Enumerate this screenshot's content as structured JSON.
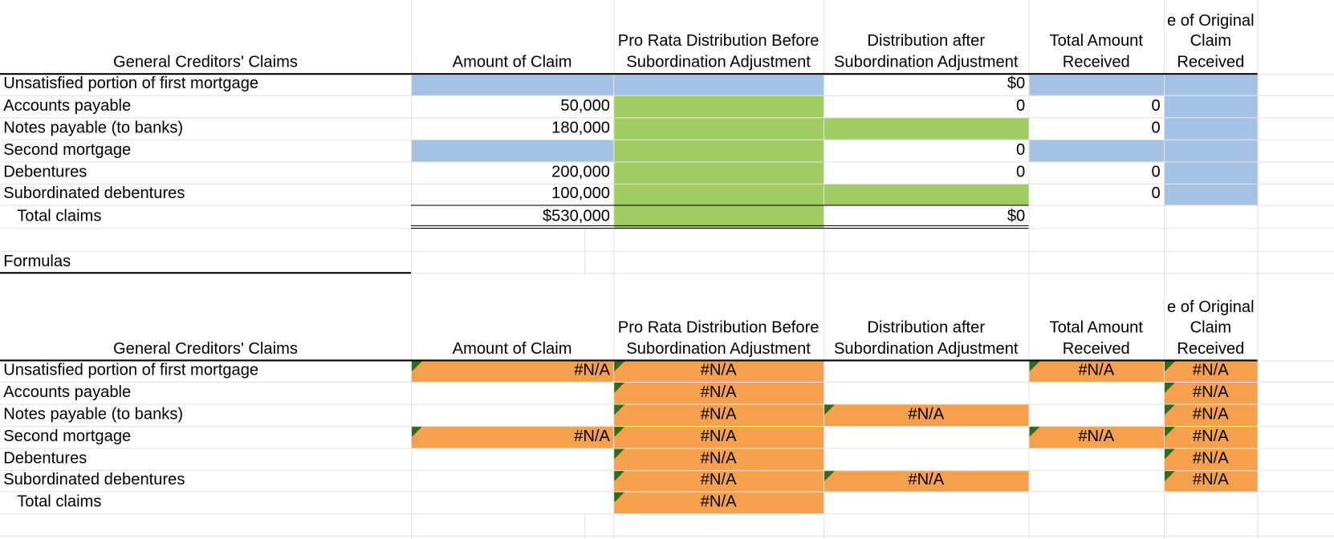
{
  "sections": [
    {
      "headers": {
        "label": "General Creditors' Claims",
        "amount": "Amount of Claim",
        "prorata": "Pro Rata Distribution Before Subordination Adjustment",
        "distribution": "Distribution after Subordination Adjustment",
        "total": "Total Amount Received",
        "percent": "e of Original Claim Received"
      },
      "rows": [
        {
          "label": "Unsatisfied portion of first mortgage",
          "distribution": "$0"
        },
        {
          "label": "Accounts payable",
          "amount": "50,000",
          "distribution": "0",
          "total": "0"
        },
        {
          "label": "Notes payable (to banks)",
          "amount": "180,000",
          "total": "0"
        },
        {
          "label": "Second mortgage",
          "distribution": "0"
        },
        {
          "label": "Debentures",
          "amount": "200,000",
          "distribution": "0",
          "total": "0"
        },
        {
          "label": "Subordinated debentures",
          "amount": "100,000",
          "total": "0"
        },
        {
          "label": "Total claims",
          "amount": "$530,000",
          "distribution": "$0"
        }
      ]
    },
    {
      "title": "Formulas",
      "headers": {
        "label": "General Creditors' Claims",
        "amount": "Amount of Claim",
        "prorata": "Pro Rata Distribution Before Subordination Adjustment",
        "distribution": "Distribution after Subordination Adjustment",
        "total": "Total Amount Received",
        "percent": "e of Original Claim Received"
      },
      "rows": [
        {
          "label": "Unsatisfied portion of first mortgage",
          "amount": "#N/A",
          "prorata": "#N/A",
          "total": "#N/A",
          "percent": "#N/A"
        },
        {
          "label": "Accounts payable",
          "prorata": "#N/A",
          "percent": "#N/A"
        },
        {
          "label": "Notes payable (to banks)",
          "prorata": "#N/A",
          "distribution": "#N/A",
          "percent": "#N/A"
        },
        {
          "label": "Second mortgage",
          "amount": "#N/A",
          "prorata": "#N/A",
          "total": "#N/A",
          "percent": "#N/A"
        },
        {
          "label": "Debentures",
          "prorata": "#N/A",
          "percent": "#N/A"
        },
        {
          "label": "Subordinated debentures",
          "prorata": "#N/A",
          "distribution": "#N/A",
          "percent": "#N/A"
        },
        {
          "label": "Total claims",
          "prorata": "#N/A"
        }
      ]
    }
  ]
}
